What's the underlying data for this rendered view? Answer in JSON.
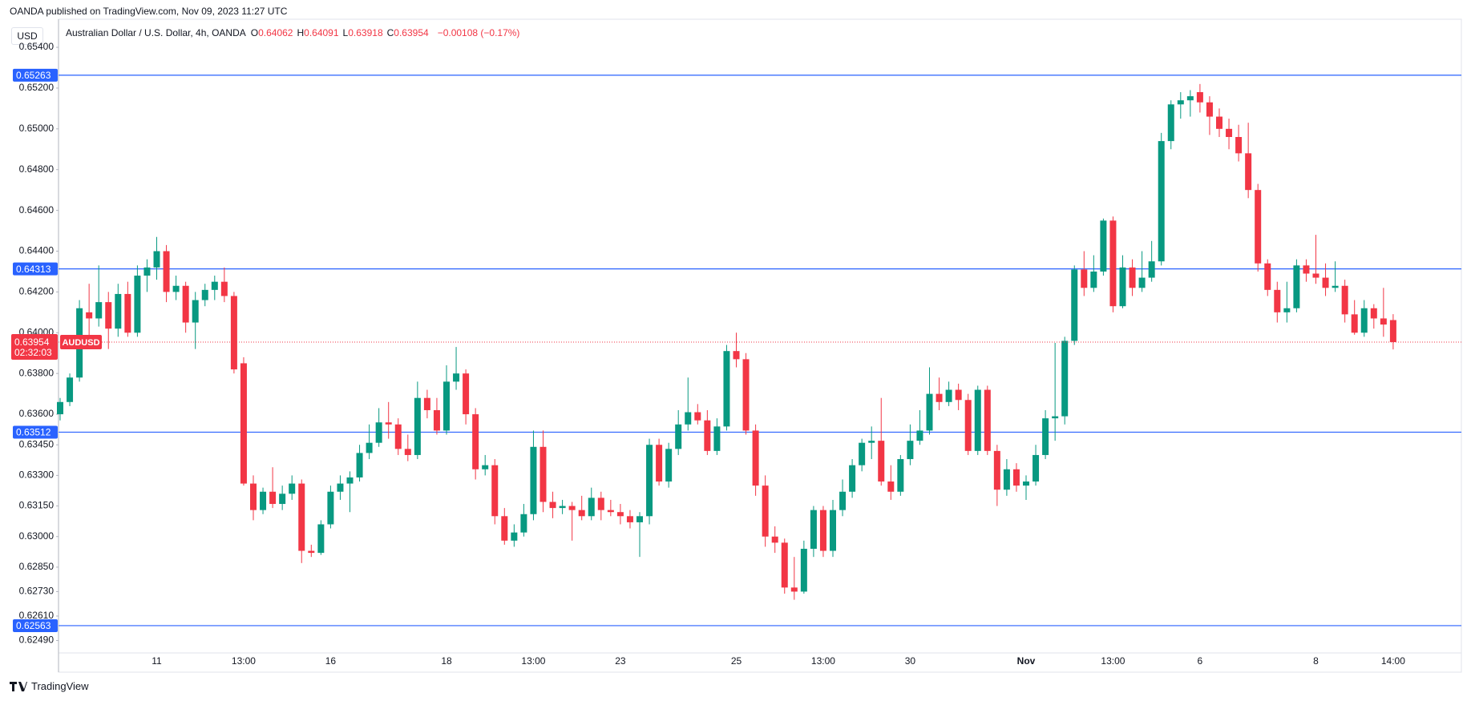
{
  "header": {
    "published": "OANDA published on TradingView.com, Nov 09, 2023 11:27 UTC",
    "currency": "USD",
    "symbol_title": "Australian Dollar / U.S. Dollar, 4h, OANDA",
    "ohlc_legend": [
      {
        "label": "O",
        "value": "0.64062"
      },
      {
        "label": "H",
        "value": "0.64091"
      },
      {
        "label": "L",
        "value": "0.63918"
      },
      {
        "label": "C",
        "value": "0.63954"
      }
    ],
    "change": "−0.00108 (−0.17%)"
  },
  "footer": {
    "brand": "TradingView"
  },
  "chart_data": {
    "type": "candlestick",
    "up_color": "#089981",
    "down_color": "#f23645",
    "ylim": [
      0.62437,
      0.65522
    ],
    "yticks": [
      {
        "value": 0.654,
        "label": "0.65400"
      },
      {
        "value": 0.652,
        "label": "0.65200"
      },
      {
        "value": 0.65,
        "label": "0.65000"
      },
      {
        "value": 0.648,
        "label": "0.64800"
      },
      {
        "value": 0.646,
        "label": "0.64600"
      },
      {
        "value": 0.644,
        "label": "0.64400"
      },
      {
        "value": 0.642,
        "label": "0.64200"
      },
      {
        "value": 0.64,
        "label": "0.64000"
      },
      {
        "value": 0.638,
        "label": "0.63800"
      },
      {
        "value": 0.636,
        "label": "0.63600"
      },
      {
        "value": 0.6345,
        "label": "0.63450"
      },
      {
        "value": 0.633,
        "label": "0.63300"
      },
      {
        "value": 0.6315,
        "label": "0.63150"
      },
      {
        "value": 0.63,
        "label": "0.63000"
      },
      {
        "value": 0.6285,
        "label": "0.62850"
      },
      {
        "value": 0.6273,
        "label": "0.62730"
      },
      {
        "value": 0.6261,
        "label": "0.62610"
      },
      {
        "value": 0.6249,
        "label": "0.62490"
      }
    ],
    "levels": [
      {
        "value": 0.65263,
        "label": "0.65263"
      },
      {
        "value": 0.64313,
        "label": "0.64313"
      },
      {
        "value": 0.63512,
        "label": "0.63512"
      },
      {
        "value": 0.62563,
        "label": "0.62563"
      }
    ],
    "level_color": "#2962ff",
    "last_price": {
      "value": 0.63954,
      "label": "0.63954",
      "symbol": "AUDUSD",
      "countdown": "02:32:03"
    },
    "categories": [
      null,
      null,
      null,
      null,
      null,
      null,
      null,
      null,
      null,
      null,
      "11",
      null,
      null,
      null,
      null,
      null,
      null,
      null,
      null,
      "13:00",
      null,
      null,
      null,
      null,
      null,
      null,
      null,
      null,
      "16",
      null,
      null,
      null,
      null,
      null,
      null,
      null,
      null,
      null,
      null,
      null,
      "18",
      null,
      null,
      null,
      null,
      null,
      null,
      null,
      null,
      "13:00",
      null,
      null,
      null,
      null,
      null,
      null,
      null,
      null,
      "23",
      null,
      null,
      null,
      null,
      null,
      null,
      null,
      null,
      null,
      null,
      null,
      "25",
      null,
      null,
      null,
      null,
      null,
      null,
      null,
      null,
      "13:00",
      null,
      null,
      null,
      null,
      null,
      null,
      null,
      null,
      "30",
      null,
      null,
      null,
      null,
      null,
      null,
      null,
      null,
      null,
      null,
      null,
      "Nov",
      null,
      null,
      null,
      null,
      null,
      null,
      null,
      null,
      "13:00",
      null,
      null,
      null,
      null,
      null,
      null,
      null,
      null,
      "6",
      null,
      null,
      null,
      null,
      null,
      null,
      null,
      null,
      null,
      null,
      null,
      "8",
      null,
      null,
      null,
      null,
      null,
      null,
      null,
      "14:00"
    ],
    "ohlc": [
      [
        0.636,
        0.6368,
        0.6357,
        0.6366
      ],
      [
        0.6366,
        0.638,
        0.6364,
        0.6378
      ],
      [
        0.6378,
        0.6416,
        0.6376,
        0.6412
      ],
      [
        0.641,
        0.6424,
        0.6398,
        0.6407
      ],
      [
        0.6407,
        0.6433,
        0.6403,
        0.6415
      ],
      [
        0.6415,
        0.642,
        0.6392,
        0.6402
      ],
      [
        0.6402,
        0.6424,
        0.6398,
        0.6419
      ],
      [
        0.6419,
        0.6425,
        0.6398,
        0.64
      ],
      [
        0.64,
        0.6433,
        0.6398,
        0.6428
      ],
      [
        0.6428,
        0.6436,
        0.642,
        0.6432
      ],
      [
        0.6432,
        0.6447,
        0.6426,
        0.644
      ],
      [
        0.644,
        0.6443,
        0.6415,
        0.642
      ],
      [
        0.642,
        0.6428,
        0.6416,
        0.6423
      ],
      [
        0.6423,
        0.6425,
        0.64,
        0.6405
      ],
      [
        0.6405,
        0.642,
        0.6392,
        0.6416
      ],
      [
        0.6416,
        0.6424,
        0.6413,
        0.6421
      ],
      [
        0.6421,
        0.6428,
        0.6416,
        0.6425
      ],
      [
        0.6425,
        0.6432,
        0.6415,
        0.6418
      ],
      [
        0.6418,
        0.642,
        0.638,
        0.6382
      ],
      [
        0.6385,
        0.6388,
        0.6325,
        0.6326
      ],
      [
        0.6326,
        0.633,
        0.6308,
        0.6313
      ],
      [
        0.6313,
        0.6324,
        0.6311,
        0.6322
      ],
      [
        0.6322,
        0.6334,
        0.6314,
        0.6316
      ],
      [
        0.6316,
        0.6325,
        0.6313,
        0.6321
      ],
      [
        0.6321,
        0.633,
        0.6318,
        0.6326
      ],
      [
        0.6326,
        0.6328,
        0.6287,
        0.6293
      ],
      [
        0.6293,
        0.6296,
        0.629,
        0.6292
      ],
      [
        0.6292,
        0.6308,
        0.6291,
        0.6306
      ],
      [
        0.6306,
        0.6325,
        0.6304,
        0.6322
      ],
      [
        0.6322,
        0.633,
        0.6318,
        0.6326
      ],
      [
        0.6326,
        0.6332,
        0.6312,
        0.6329
      ],
      [
        0.6329,
        0.6345,
        0.6327,
        0.6341
      ],
      [
        0.6341,
        0.6355,
        0.6338,
        0.6346
      ],
      [
        0.6346,
        0.6363,
        0.6344,
        0.6356
      ],
      [
        0.6356,
        0.6366,
        0.6348,
        0.6355
      ],
      [
        0.6355,
        0.6358,
        0.634,
        0.6343
      ],
      [
        0.6343,
        0.635,
        0.6337,
        0.634
      ],
      [
        0.634,
        0.6376,
        0.6338,
        0.6368
      ],
      [
        0.6368,
        0.6372,
        0.6358,
        0.6362
      ],
      [
        0.6362,
        0.6368,
        0.635,
        0.6352
      ],
      [
        0.6352,
        0.6384,
        0.635,
        0.6376
      ],
      [
        0.6376,
        0.6393,
        0.6372,
        0.638
      ],
      [
        0.638,
        0.6382,
        0.6355,
        0.636
      ],
      [
        0.636,
        0.6363,
        0.6328,
        0.6333
      ],
      [
        0.6333,
        0.634,
        0.633,
        0.6335
      ],
      [
        0.6335,
        0.6338,
        0.6306,
        0.631
      ],
      [
        0.631,
        0.6314,
        0.6296,
        0.6298
      ],
      [
        0.6298,
        0.6306,
        0.6295,
        0.6302
      ],
      [
        0.6302,
        0.6316,
        0.63,
        0.6311
      ],
      [
        0.6311,
        0.6352,
        0.6308,
        0.6344
      ],
      [
        0.6344,
        0.6352,
        0.6312,
        0.6317
      ],
      [
        0.6317,
        0.6322,
        0.6309,
        0.6314
      ],
      [
        0.6314,
        0.6318,
        0.6311,
        0.6315
      ],
      [
        0.6315,
        0.6317,
        0.6298,
        0.6313
      ],
      [
        0.6313,
        0.632,
        0.6308,
        0.631
      ],
      [
        0.631,
        0.6324,
        0.6308,
        0.6319
      ],
      [
        0.6319,
        0.6322,
        0.6308,
        0.6313
      ],
      [
        0.6313,
        0.6318,
        0.631,
        0.6312
      ],
      [
        0.6312,
        0.6316,
        0.6306,
        0.631
      ],
      [
        0.631,
        0.6313,
        0.6304,
        0.6307
      ],
      [
        0.6307,
        0.6312,
        0.629,
        0.631
      ],
      [
        0.631,
        0.6348,
        0.6306,
        0.6345
      ],
      [
        0.6345,
        0.6348,
        0.6325,
        0.6327
      ],
      [
        0.6327,
        0.6346,
        0.6324,
        0.6343
      ],
      [
        0.6343,
        0.6362,
        0.634,
        0.6355
      ],
      [
        0.6355,
        0.6378,
        0.6352,
        0.6361
      ],
      [
        0.6361,
        0.6365,
        0.6355,
        0.6357
      ],
      [
        0.6357,
        0.6362,
        0.634,
        0.6342
      ],
      [
        0.6342,
        0.6358,
        0.634,
        0.6354
      ],
      [
        0.6354,
        0.6394,
        0.6352,
        0.6391
      ],
      [
        0.6391,
        0.64,
        0.6383,
        0.6387
      ],
      [
        0.6387,
        0.639,
        0.635,
        0.6352
      ],
      [
        0.6352,
        0.6355,
        0.632,
        0.6325
      ],
      [
        0.6325,
        0.633,
        0.6295,
        0.63
      ],
      [
        0.63,
        0.6305,
        0.6292,
        0.6297
      ],
      [
        0.6297,
        0.6299,
        0.6272,
        0.6275
      ],
      [
        0.6275,
        0.629,
        0.6269,
        0.6273
      ],
      [
        0.6273,
        0.6298,
        0.6272,
        0.6294
      ],
      [
        0.6294,
        0.6315,
        0.629,
        0.6313
      ],
      [
        0.6313,
        0.6315,
        0.629,
        0.6293
      ],
      [
        0.6293,
        0.6318,
        0.629,
        0.6313
      ],
      [
        0.6313,
        0.6328,
        0.631,
        0.6322
      ],
      [
        0.6322,
        0.6338,
        0.6319,
        0.6335
      ],
      [
        0.6335,
        0.6348,
        0.6332,
        0.6346
      ],
      [
        0.6346,
        0.6354,
        0.6338,
        0.6347
      ],
      [
        0.6347,
        0.6368,
        0.6325,
        0.6327
      ],
      [
        0.6327,
        0.6335,
        0.6318,
        0.6322
      ],
      [
        0.6322,
        0.634,
        0.632,
        0.6338
      ],
      [
        0.6338,
        0.6355,
        0.6335,
        0.6347
      ],
      [
        0.6347,
        0.6362,
        0.6345,
        0.6352
      ],
      [
        0.6352,
        0.6383,
        0.635,
        0.637
      ],
      [
        0.637,
        0.6378,
        0.6362,
        0.6366
      ],
      [
        0.6366,
        0.6376,
        0.6364,
        0.6372
      ],
      [
        0.6372,
        0.6375,
        0.6362,
        0.6367
      ],
      [
        0.6367,
        0.637,
        0.634,
        0.6342
      ],
      [
        0.6342,
        0.6374,
        0.634,
        0.6372
      ],
      [
        0.6372,
        0.6374,
        0.634,
        0.6342
      ],
      [
        0.6342,
        0.6345,
        0.6315,
        0.6323
      ],
      [
        0.6323,
        0.6338,
        0.632,
        0.6333
      ],
      [
        0.6333,
        0.6336,
        0.6322,
        0.6325
      ],
      [
        0.6325,
        0.633,
        0.6318,
        0.6327
      ],
      [
        0.6327,
        0.6345,
        0.6325,
        0.634
      ],
      [
        0.634,
        0.6362,
        0.6338,
        0.6358
      ],
      [
        0.6358,
        0.6395,
        0.6347,
        0.6359
      ],
      [
        0.6359,
        0.6398,
        0.6355,
        0.6396
      ],
      [
        0.6396,
        0.6433,
        0.6394,
        0.6431
      ],
      [
        0.6431,
        0.644,
        0.6418,
        0.6422
      ],
      [
        0.6422,
        0.6438,
        0.642,
        0.643
      ],
      [
        0.643,
        0.6456,
        0.6428,
        0.6455
      ],
      [
        0.6455,
        0.6457,
        0.641,
        0.6413
      ],
      [
        0.6413,
        0.6438,
        0.6412,
        0.6432
      ],
      [
        0.6432,
        0.6436,
        0.6418,
        0.6422
      ],
      [
        0.6422,
        0.644,
        0.642,
        0.6427
      ],
      [
        0.6427,
        0.6445,
        0.6425,
        0.6435
      ],
      [
        0.6435,
        0.6498,
        0.6433,
        0.6494
      ],
      [
        0.6494,
        0.6514,
        0.649,
        0.6512
      ],
      [
        0.6512,
        0.6518,
        0.6505,
        0.6514
      ],
      [
        0.6514,
        0.6519,
        0.6506,
        0.6516
      ],
      [
        0.6518,
        0.6522,
        0.6508,
        0.6513
      ],
      [
        0.6513,
        0.6516,
        0.6497,
        0.6506
      ],
      [
        0.6506,
        0.651,
        0.6496,
        0.65
      ],
      [
        0.65,
        0.6505,
        0.649,
        0.6496
      ],
      [
        0.6496,
        0.6502,
        0.6484,
        0.6488
      ],
      [
        0.6488,
        0.6503,
        0.6466,
        0.647
      ],
      [
        0.647,
        0.6473,
        0.643,
        0.6434
      ],
      [
        0.6434,
        0.6436,
        0.6418,
        0.6421
      ],
      [
        0.6421,
        0.6425,
        0.6405,
        0.641
      ],
      [
        0.641,
        0.6425,
        0.6405,
        0.6412
      ],
      [
        0.6412,
        0.6436,
        0.641,
        0.6433
      ],
      [
        0.6433,
        0.6436,
        0.6425,
        0.6429
      ],
      [
        0.6429,
        0.6448,
        0.6424,
        0.6427
      ],
      [
        0.6427,
        0.6434,
        0.6418,
        0.6422
      ],
      [
        0.6422,
        0.6435,
        0.642,
        0.6423
      ],
      [
        0.6423,
        0.6426,
        0.6405,
        0.6409
      ],
      [
        0.6409,
        0.6416,
        0.6399,
        0.64
      ],
      [
        0.64,
        0.6416,
        0.6398,
        0.6412
      ],
      [
        0.6412,
        0.6414,
        0.6402,
        0.6407
      ],
      [
        0.6407,
        0.6422,
        0.6398,
        0.6404
      ],
      [
        0.64062,
        0.64091,
        0.63918,
        0.63954
      ]
    ]
  }
}
